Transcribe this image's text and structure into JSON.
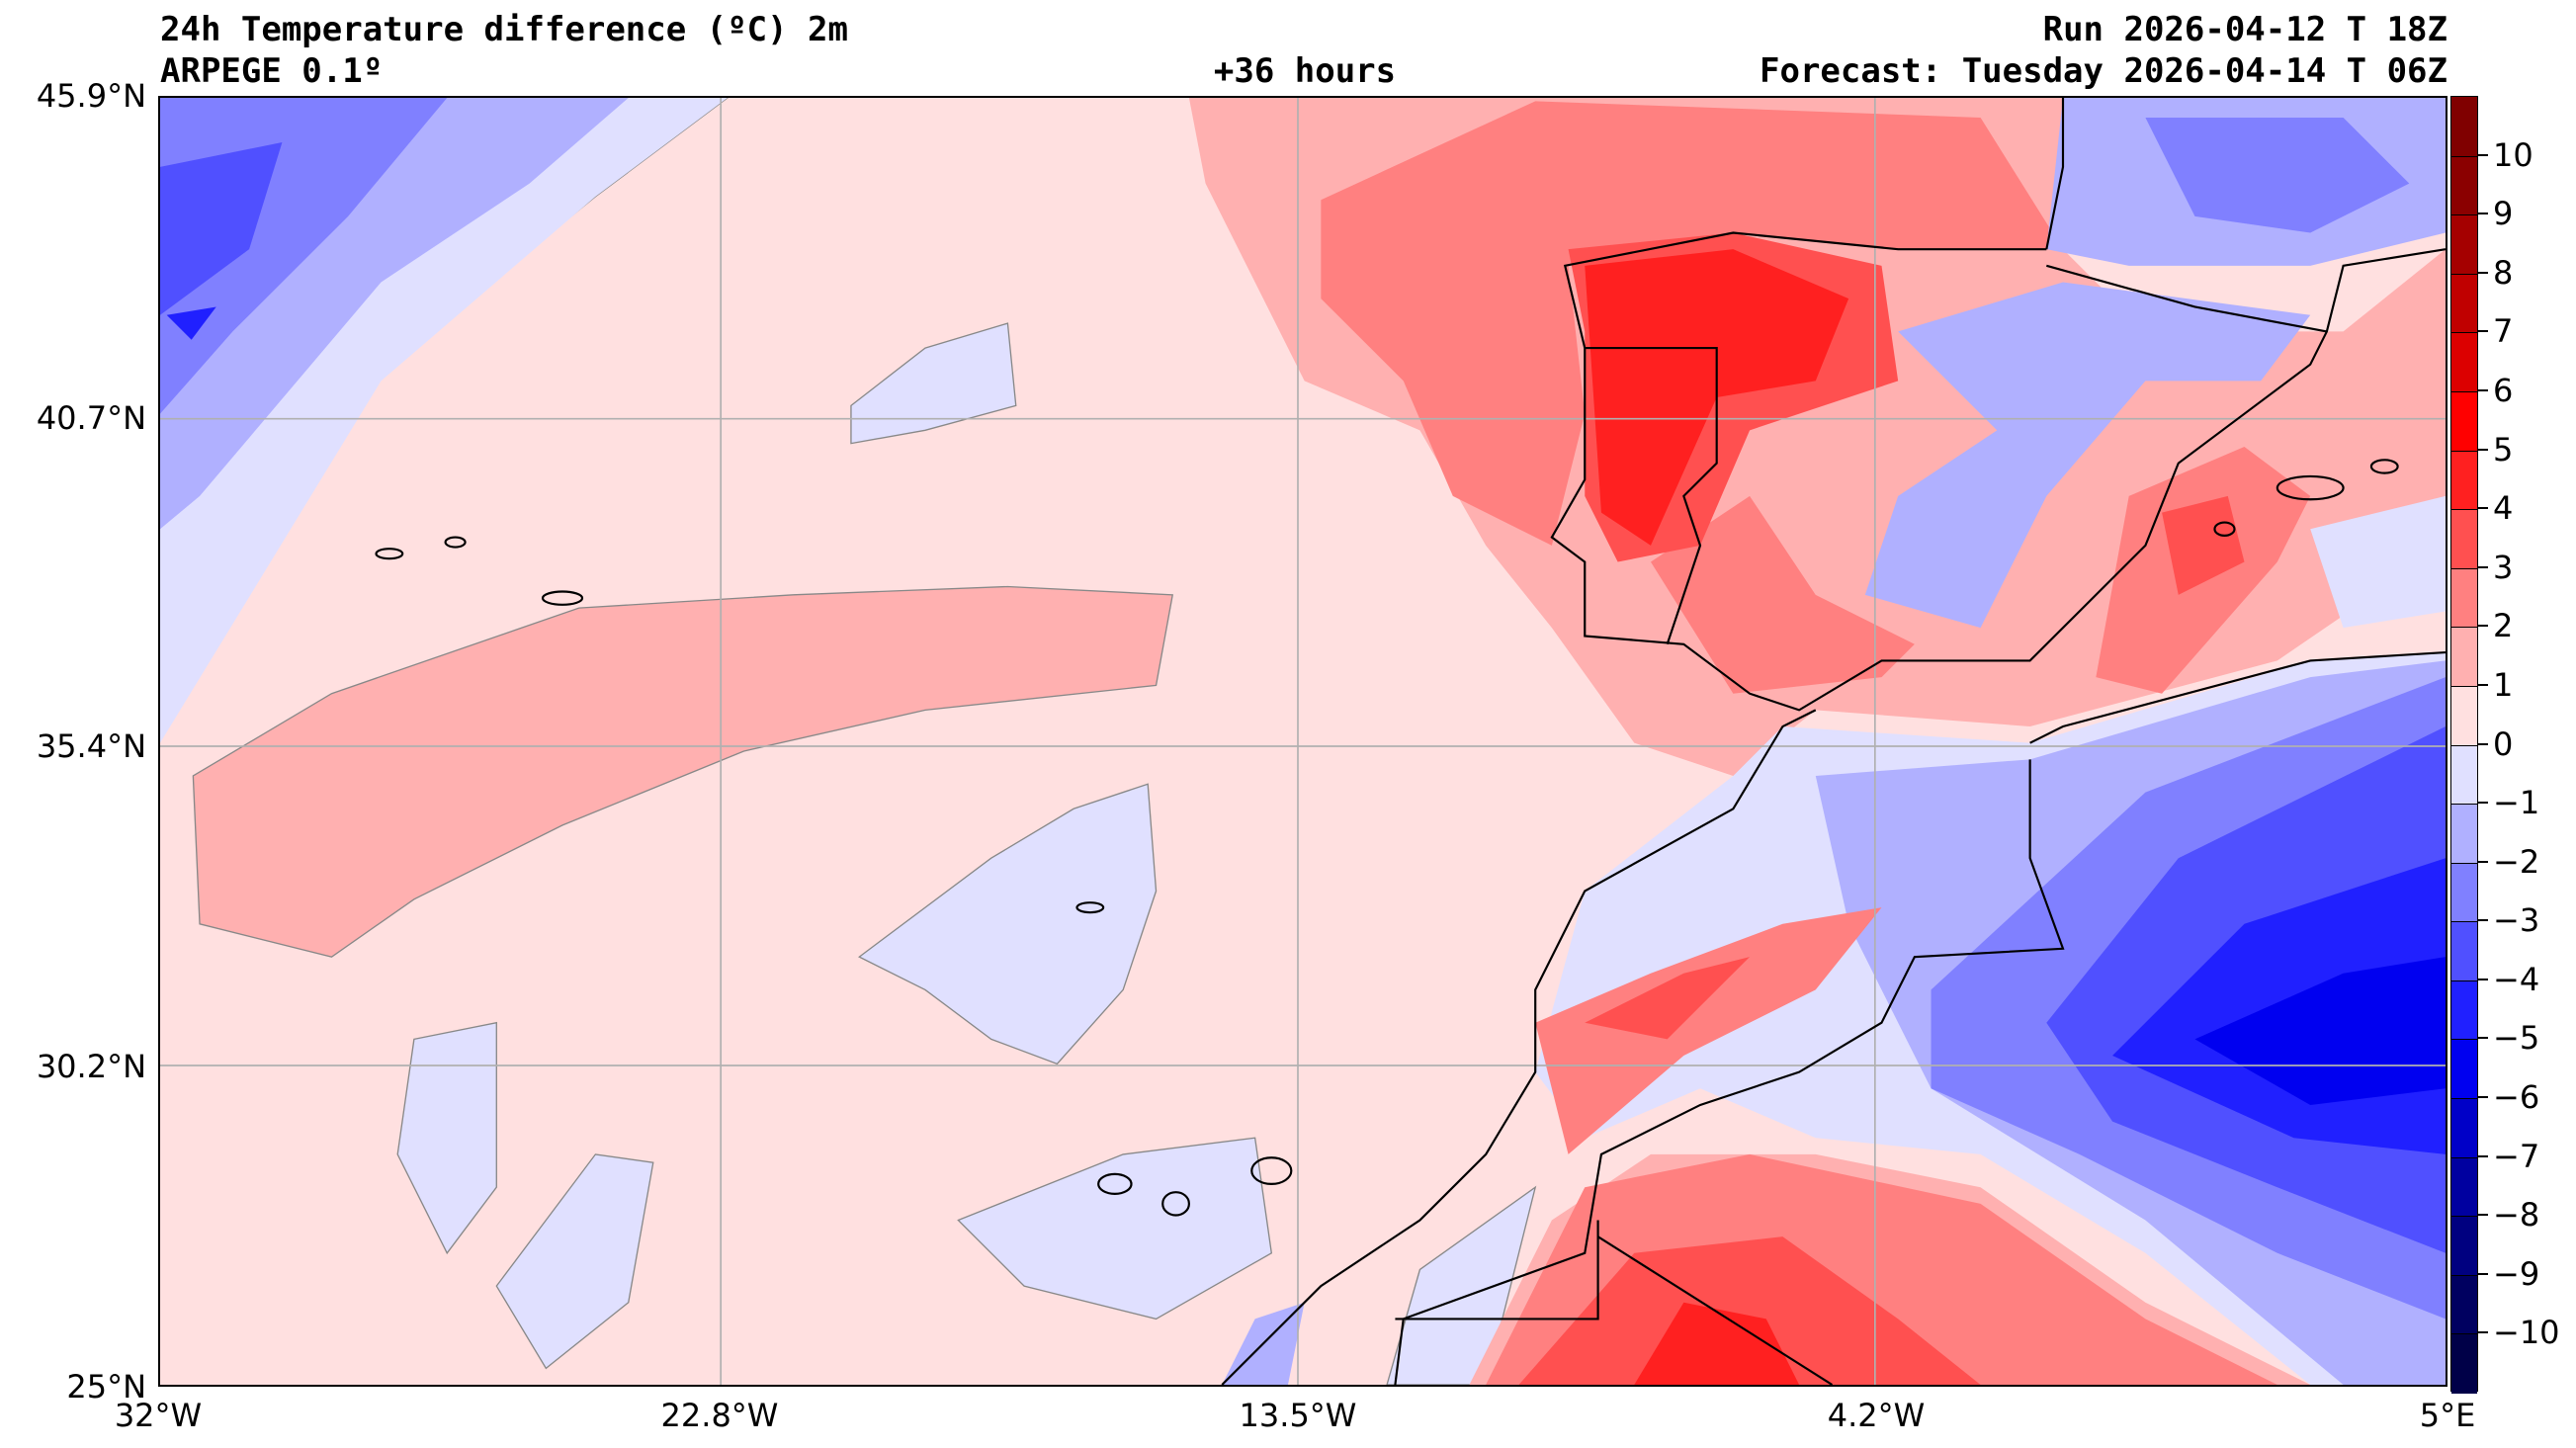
{
  "header": {
    "title": "24h Temperature difference (ºC) 2m",
    "model": "ARPEGE 0.1º",
    "lead_time": "+36 hours",
    "run": "Run 2026-04-12 T 18Z",
    "forecast": "Forecast: Tuesday 2026-04-14 T 06Z"
  },
  "axes": {
    "lat_labels": [
      "45.9°N",
      "40.7°N",
      "35.4°N",
      "30.2°N",
      "25°N"
    ],
    "lon_labels": [
      "32°W",
      "22.8°W",
      "13.5°W",
      "4.2°W",
      "5°E"
    ]
  },
  "colorbar": {
    "unit": "ºC",
    "levels": [
      -11,
      -10,
      -9,
      -8,
      -7,
      -6,
      -5,
      -4,
      -3,
      -2,
      -1,
      0,
      1,
      2,
      3,
      4,
      5,
      6,
      7,
      8,
      9,
      10,
      11
    ],
    "tick_labels": [
      "10",
      "9",
      "8",
      "7",
      "6",
      "5",
      "4",
      "3",
      "2",
      "1",
      "0",
      "−1",
      "−2",
      "−3",
      "−4",
      "−5",
      "−6",
      "−7",
      "−8",
      "−9",
      "−10"
    ],
    "colors_top_to_bottom": [
      "#800000",
      "#8b0000",
      "#a50000",
      "#c00000",
      "#dc0000",
      "#ff0000",
      "#ff2020",
      "#ff5050",
      "#ff8080",
      "#ffb0b0",
      "#ffe0e0",
      "#e0e0ff",
      "#b0b0ff",
      "#8080ff",
      "#5050ff",
      "#2020ff",
      "#0000f0",
      "#0000c8",
      "#0000a0",
      "#000080",
      "#000060",
      "#000048"
    ]
  }
}
